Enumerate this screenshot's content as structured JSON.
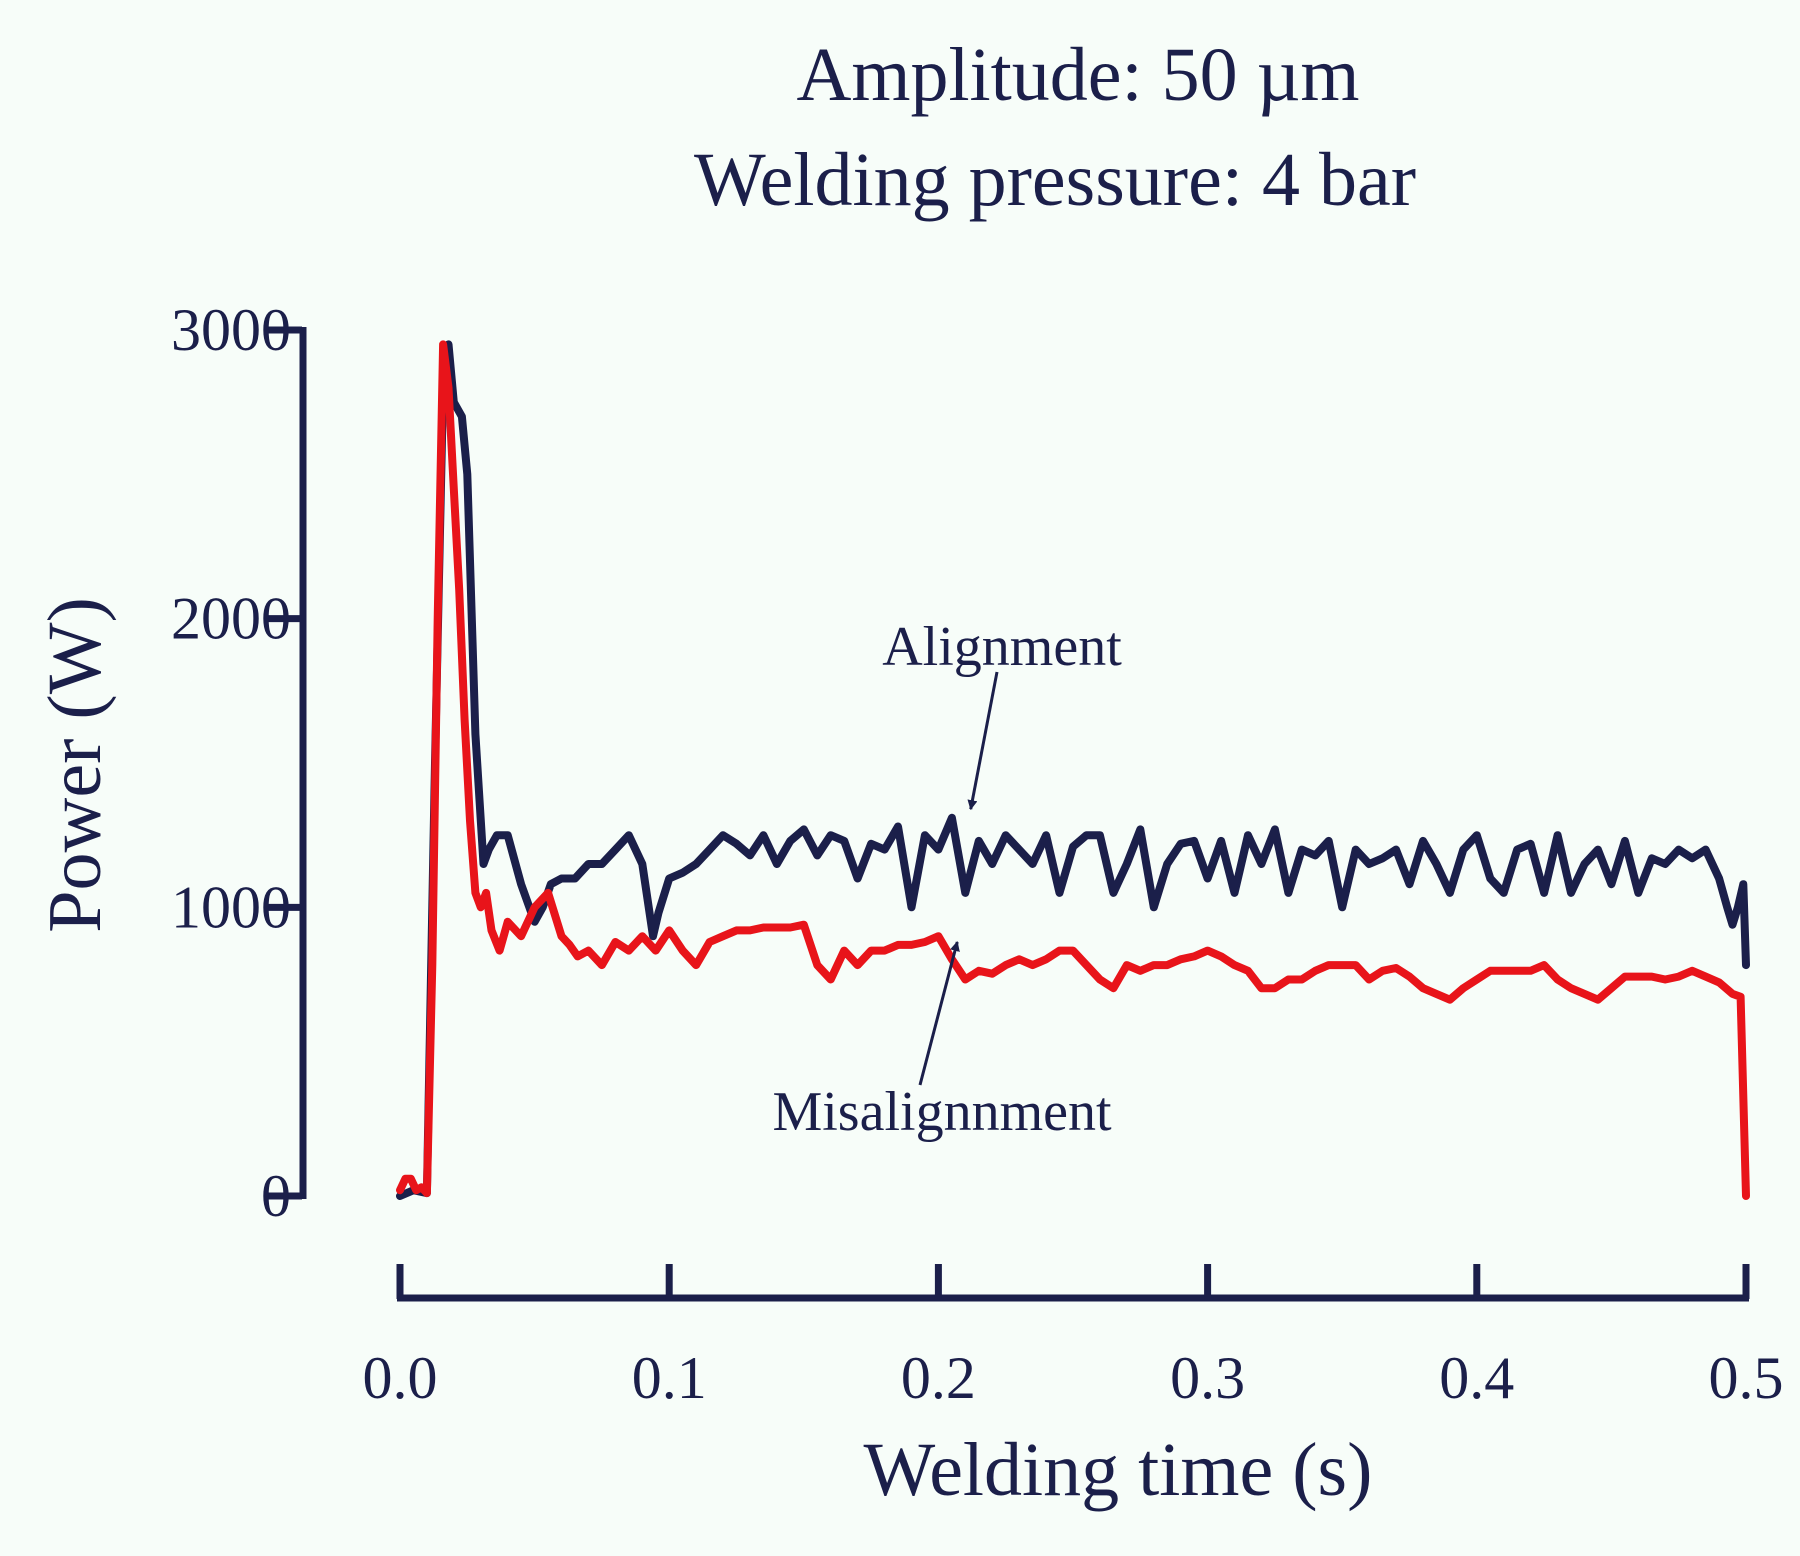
{
  "chart_data": {
    "type": "line",
    "title_lines": [
      "Amplitude: 50 µm",
      "Welding pressure: 4 bar"
    ],
    "xlabel": "Welding time (s)",
    "ylabel": "Power (W)",
    "xlim": [
      0.0,
      0.5
    ],
    "ylim": [
      0,
      3000
    ],
    "x_ticks": [
      "0.0",
      "0.1",
      "0.2",
      "0.3",
      "0.4",
      "0.5"
    ],
    "y_ticks": [
      "0",
      "1000",
      "2000",
      "3000"
    ],
    "grid": false,
    "colors": {
      "Alignment": "#1b1f4a",
      "Misalignnment": "#e8141a",
      "axis": "#1b1f4a",
      "background": "#f7fdf9"
    },
    "series": [
      {
        "name": "Alignment",
        "x": [
          0.0,
          0.005,
          0.01,
          0.013,
          0.016,
          0.018,
          0.02,
          0.023,
          0.025,
          0.028,
          0.031,
          0.033,
          0.036,
          0.04,
          0.045,
          0.05,
          0.053,
          0.056,
          0.06,
          0.065,
          0.07,
          0.075,
          0.08,
          0.085,
          0.09,
          0.094,
          0.096,
          0.1,
          0.105,
          0.11,
          0.115,
          0.12,
          0.125,
          0.13,
          0.135,
          0.14,
          0.145,
          0.15,
          0.155,
          0.16,
          0.165,
          0.17,
          0.175,
          0.18,
          0.185,
          0.19,
          0.195,
          0.2,
          0.205,
          0.21,
          0.215,
          0.22,
          0.225,
          0.23,
          0.235,
          0.24,
          0.245,
          0.25,
          0.255,
          0.26,
          0.265,
          0.27,
          0.275,
          0.28,
          0.285,
          0.29,
          0.295,
          0.3,
          0.305,
          0.31,
          0.315,
          0.32,
          0.325,
          0.33,
          0.335,
          0.34,
          0.345,
          0.35,
          0.355,
          0.36,
          0.365,
          0.37,
          0.375,
          0.38,
          0.385,
          0.39,
          0.395,
          0.4,
          0.405,
          0.41,
          0.415,
          0.42,
          0.425,
          0.43,
          0.435,
          0.44,
          0.445,
          0.45,
          0.455,
          0.46,
          0.465,
          0.47,
          0.475,
          0.48,
          0.485,
          0.49,
          0.493,
          0.495,
          0.497,
          0.499,
          0.5
        ],
        "y": [
          0,
          20,
          10,
          1500,
          2800,
          2950,
          2750,
          2700,
          2500,
          1600,
          1150,
          1200,
          1250,
          1250,
          1080,
          950,
          1000,
          1080,
          1100,
          1100,
          1150,
          1150,
          1200,
          1250,
          1150,
          900,
          980,
          1100,
          1120,
          1150,
          1200,
          1250,
          1220,
          1180,
          1250,
          1150,
          1230,
          1270,
          1180,
          1250,
          1230,
          1100,
          1220,
          1200,
          1280,
          1000,
          1250,
          1200,
          1310,
          1050,
          1230,
          1150,
          1250,
          1200,
          1150,
          1250,
          1050,
          1210,
          1250,
          1250,
          1050,
          1150,
          1270,
          1000,
          1150,
          1220,
          1230,
          1100,
          1230,
          1050,
          1250,
          1150,
          1270,
          1050,
          1200,
          1180,
          1230,
          1000,
          1200,
          1150,
          1170,
          1200,
          1080,
          1230,
          1150,
          1050,
          1200,
          1250,
          1100,
          1050,
          1200,
          1220,
          1050,
          1250,
          1050,
          1150,
          1200,
          1080,
          1230,
          1050,
          1170,
          1150,
          1200,
          1170,
          1200,
          1100,
          1000,
          940,
          1000,
          1080,
          800
        ]
      },
      {
        "name": "Misalignnment",
        "x": [
          0.0,
          0.002,
          0.004,
          0.006,
          0.008,
          0.01,
          0.012,
          0.014,
          0.016,
          0.018,
          0.02,
          0.022,
          0.024,
          0.026,
          0.028,
          0.03,
          0.032,
          0.034,
          0.037,
          0.04,
          0.045,
          0.05,
          0.055,
          0.06,
          0.063,
          0.066,
          0.07,
          0.075,
          0.08,
          0.085,
          0.09,
          0.095,
          0.1,
          0.105,
          0.11,
          0.115,
          0.12,
          0.125,
          0.13,
          0.135,
          0.14,
          0.145,
          0.15,
          0.155,
          0.16,
          0.165,
          0.17,
          0.175,
          0.18,
          0.185,
          0.19,
          0.195,
          0.2,
          0.205,
          0.21,
          0.215,
          0.22,
          0.225,
          0.23,
          0.235,
          0.24,
          0.245,
          0.25,
          0.255,
          0.26,
          0.265,
          0.27,
          0.275,
          0.28,
          0.285,
          0.29,
          0.295,
          0.3,
          0.305,
          0.31,
          0.315,
          0.32,
          0.325,
          0.33,
          0.335,
          0.34,
          0.345,
          0.35,
          0.355,
          0.36,
          0.365,
          0.37,
          0.375,
          0.38,
          0.385,
          0.39,
          0.395,
          0.4,
          0.405,
          0.41,
          0.415,
          0.42,
          0.425,
          0.43,
          0.435,
          0.44,
          0.445,
          0.45,
          0.455,
          0.46,
          0.465,
          0.47,
          0.475,
          0.48,
          0.485,
          0.49,
          0.495,
          0.498,
          0.5
        ],
        "y": [
          20,
          60,
          60,
          20,
          30,
          10,
          800,
          2000,
          2950,
          2800,
          2450,
          2100,
          1650,
          1300,
          1050,
          1000,
          1050,
          920,
          850,
          950,
          900,
          1000,
          1050,
          900,
          870,
          830,
          850,
          800,
          880,
          850,
          900,
          850,
          920,
          850,
          800,
          880,
          900,
          920,
          920,
          930,
          930,
          930,
          940,
          800,
          750,
          850,
          800,
          850,
          850,
          870,
          870,
          880,
          900,
          820,
          750,
          780,
          770,
          800,
          820,
          800,
          820,
          850,
          850,
          800,
          750,
          720,
          800,
          780,
          800,
          800,
          820,
          830,
          850,
          830,
          800,
          780,
          720,
          720,
          750,
          750,
          780,
          800,
          800,
          800,
          750,
          780,
          790,
          760,
          720,
          700,
          680,
          720,
          750,
          780,
          780,
          780,
          780,
          800,
          750,
          720,
          700,
          680,
          720,
          760,
          760,
          760,
          750,
          760,
          780,
          760,
          740,
          700,
          690,
          0
        ]
      }
    ],
    "annotations": [
      {
        "text": "Alignment",
        "series": "Alignment",
        "point_x": 0.212,
        "point_y": 1340
      },
      {
        "text": "Misalignnment",
        "series": "Misalignnment",
        "point_x": 0.207,
        "point_y": 880
      }
    ]
  }
}
